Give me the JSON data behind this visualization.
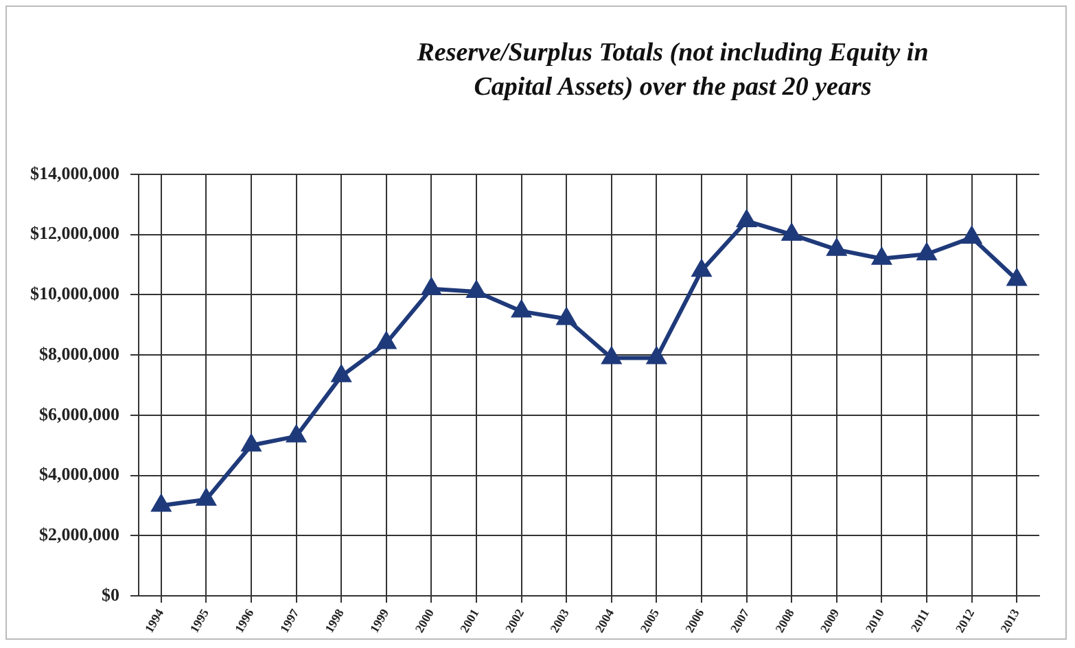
{
  "chart_data": {
    "type": "line",
    "title": "Reserve/Surplus Totals (not including Equity in\nCapital Assets) over the past 20 years",
    "categories": [
      "1994",
      "1995",
      "1996",
      "1997",
      "1998",
      "1999",
      "2000",
      "2001",
      "2002",
      "2003",
      "2004",
      "2005",
      "2006",
      "2007",
      "2008",
      "2009",
      "2010",
      "2011",
      "2012",
      "2013"
    ],
    "series": [
      {
        "color": "#1f3a7a",
        "values": [
          3000000,
          3200000,
          5000000,
          5300000,
          7300000,
          8400000,
          10200000,
          10100000,
          9450000,
          9200000,
          7900000,
          7900000,
          10800000,
          12450000,
          12000000,
          11500000,
          11200000,
          11350000,
          11900000,
          10500000
        ]
      }
    ],
    "ylim": [
      0,
      14000000
    ],
    "yticks": [
      {
        "value": 0,
        "label": "$0"
      },
      {
        "value": 2000000,
        "label": "$2,000,000"
      },
      {
        "value": 4000000,
        "label": "$4,000,000"
      },
      {
        "value": 6000000,
        "label": "$6,000,000"
      },
      {
        "value": 8000000,
        "label": "$8,000,000"
      },
      {
        "value": 10000000,
        "label": "$10,000,000"
      },
      {
        "value": 12000000,
        "label": "$12,000,000"
      },
      {
        "value": 14000000,
        "label": "$14,000,000"
      }
    ],
    "grid": true,
    "legend": false,
    "marker": "triangle",
    "line_style": "solid"
  }
}
